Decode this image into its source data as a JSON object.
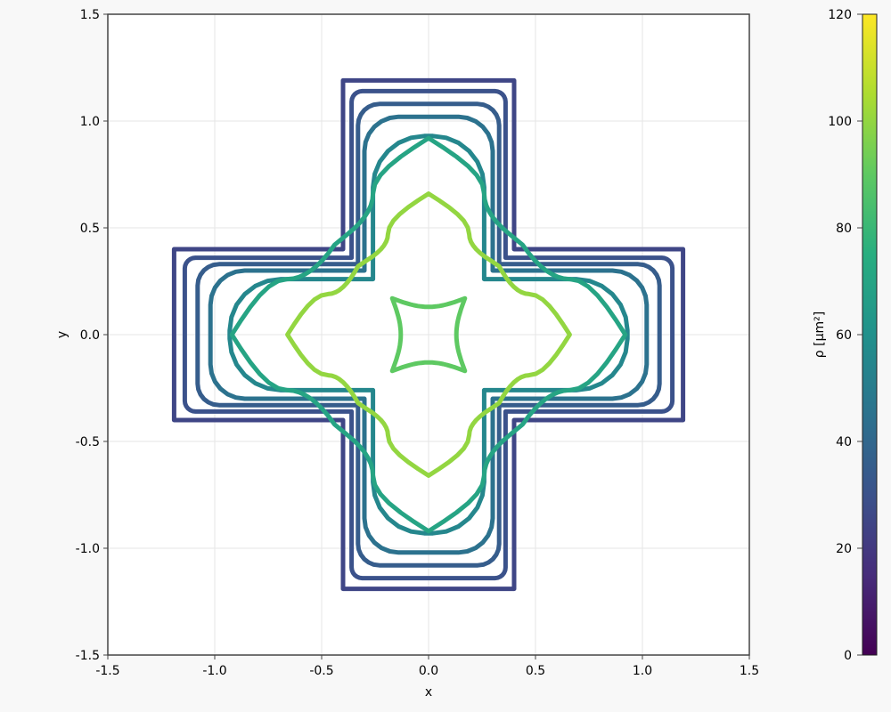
{
  "chart_data": {
    "type": "scatter",
    "title": "",
    "xlabel": "x",
    "ylabel": "y",
    "xlim": [
      -1.5,
      1.5
    ],
    "ylim": [
      -1.5,
      1.5
    ],
    "x_ticks": [
      "-1.5",
      "-1.0",
      "-0.5",
      "0.0",
      "0.5",
      "1.0",
      "1.5"
    ],
    "y_ticks": [
      "-1.5",
      "-1.0",
      "-0.5",
      "0.0",
      "0.5",
      "1.0",
      "1.5"
    ],
    "grid": true,
    "colorbar": {
      "label": "ρ [µm²]",
      "range": [
        0,
        120
      ],
      "ticks": [
        "0",
        "20",
        "40",
        "60",
        "80",
        "100",
        "120"
      ],
      "colormap": "viridis"
    },
    "curves": [
      {
        "shape": "cross",
        "halfwidth": 0.4,
        "arm": 1.19,
        "r": 0.0,
        "rho": 25
      },
      {
        "shape": "cross",
        "halfwidth": 0.36,
        "arm": 1.14,
        "r": 0.05,
        "rho": 30
      },
      {
        "shape": "cross",
        "halfwidth": 0.33,
        "arm": 1.08,
        "r": 0.1,
        "rho": 35
      },
      {
        "shape": "cross",
        "halfwidth": 0.3,
        "arm": 1.02,
        "r": 0.16,
        "rho": 45
      },
      {
        "shape": "cross",
        "halfwidth": 0.26,
        "arm": 0.93,
        "r": 0.24,
        "rho": 55
      },
      {
        "shape": "inner",
        "ref": [
          0.44,
          0.42,
          0.26,
          0.66,
          0.92
        ],
        "rho": 70
      },
      {
        "shape": "inner",
        "ref": [
          0.33,
          0.32,
          0.19,
          0.47,
          0.66
        ],
        "rho": 100
      },
      {
        "shape": "star",
        "half": 0.17,
        "bow": 0.04,
        "rho": 90
      }
    ]
  }
}
